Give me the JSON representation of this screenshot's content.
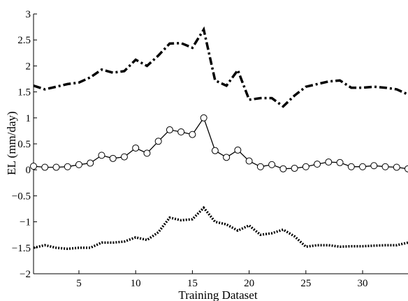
{
  "chart_data": {
    "type": "line",
    "xlabel": "Training Dataset",
    "ylabel": "EL (mm/day)",
    "xlim": [
      1,
      34
    ],
    "ylim": [
      -2,
      3
    ],
    "x_ticks": [
      5,
      10,
      15,
      20,
      25,
      30
    ],
    "y_ticks": [
      -2,
      -1.5,
      -1,
      -0.5,
      0,
      0.5,
      1,
      1.5,
      2,
      2.5,
      3
    ],
    "y_tick_labels": [
      "−2",
      "−1.5",
      "−1",
      "−0.5",
      "0",
      "0.5",
      "1",
      "1.5",
      "2",
      "2.5",
      "3"
    ],
    "grid": false,
    "legend": "none",
    "x": [
      1,
      2,
      3,
      4,
      5,
      6,
      7,
      8,
      9,
      10,
      11,
      12,
      13,
      14,
      15,
      16,
      17,
      18,
      19,
      20,
      21,
      22,
      23,
      24,
      25,
      26,
      27,
      28,
      29,
      30,
      31,
      32,
      33,
      34
    ],
    "series": [
      {
        "style": "dash-dot",
        "values": [
          1.62,
          1.55,
          1.6,
          1.65,
          1.68,
          1.78,
          1.93,
          1.87,
          1.9,
          2.12,
          2.0,
          2.2,
          2.43,
          2.44,
          2.35,
          2.7,
          1.72,
          1.62,
          1.92,
          1.35,
          1.38,
          1.38,
          1.22,
          1.43,
          1.6,
          1.65,
          1.7,
          1.72,
          1.58,
          1.58,
          1.6,
          1.58,
          1.55,
          1.45
        ]
      },
      {
        "style": "solid-circle-markers",
        "values": [
          0.07,
          0.05,
          0.05,
          0.06,
          0.1,
          0.13,
          0.28,
          0.22,
          0.25,
          0.42,
          0.32,
          0.55,
          0.77,
          0.73,
          0.68,
          1.0,
          0.37,
          0.24,
          0.38,
          0.17,
          0.06,
          0.1,
          0.02,
          0.03,
          0.06,
          0.11,
          0.15,
          0.14,
          0.06,
          0.06,
          0.08,
          0.06,
          0.05,
          0.02
        ]
      },
      {
        "style": "dotted",
        "values": [
          -1.5,
          -1.45,
          -1.5,
          -1.52,
          -1.5,
          -1.5,
          -1.4,
          -1.4,
          -1.38,
          -1.3,
          -1.35,
          -1.2,
          -0.92,
          -0.97,
          -0.95,
          -0.73,
          -1.0,
          -1.05,
          -1.17,
          -1.07,
          -1.25,
          -1.22,
          -1.15,
          -1.28,
          -1.48,
          -1.45,
          -1.45,
          -1.48,
          -1.47,
          -1.47,
          -1.46,
          -1.45,
          -1.45,
          -1.4
        ]
      }
    ]
  }
}
